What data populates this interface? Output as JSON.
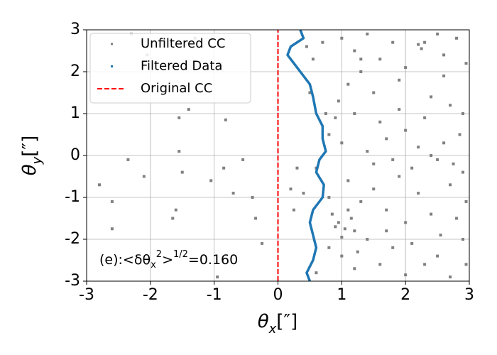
{
  "chart_data": {
    "type": "scatter",
    "x_label": {
      "base": "θ",
      "sub": "x",
      "suffix": "[″]"
    },
    "y_label": {
      "base": "θ",
      "sub": "y",
      "suffix": "[″]"
    },
    "annotation": {
      "prefix": "(e):<δθ",
      "sub": "x",
      "sup": "2",
      "mid": ">",
      "sup2": "1/2",
      "suffix": "=0.160"
    },
    "xlim": [
      -3,
      3
    ],
    "ylim": [
      -3,
      3
    ],
    "xticks": [
      -3,
      -2,
      -1,
      0,
      1,
      2,
      3
    ],
    "yticks": [
      -3,
      -2,
      -1,
      0,
      1,
      2,
      3
    ],
    "grid": true,
    "legend": "upper left",
    "series": [
      {
        "name": "Unfiltered CC",
        "color": "#808080",
        "marker": "point",
        "x": [
          -2.8,
          -2.6,
          -2.35,
          -2.1,
          -2.05,
          -2.3,
          -1.4,
          -1.55,
          -1.5,
          -1.6,
          -1.65,
          -1.05,
          -0.82,
          -0.9,
          -0.85,
          -0.7,
          -0.55,
          -0.4,
          -0.35,
          -0.25,
          -0.95,
          -2.6,
          -1.55,
          -1.3,
          0.45,
          0.55,
          0.5,
          0.75,
          0.8,
          0.6,
          0.8,
          0.85,
          0.95,
          1.05,
          1.15,
          1.2,
          1.0,
          0.9,
          1.1,
          1.0,
          1.2,
          1.4,
          1.3,
          1.6,
          1.8,
          2.0,
          2.2,
          2.25,
          2.3,
          2.5,
          2.6,
          2.8,
          2.95,
          1.1,
          1.5,
          1.9,
          2.4,
          2.7,
          2.9,
          1.2,
          1.6,
          2.0,
          2.3,
          2.6,
          2.85,
          1.0,
          1.4,
          1.8,
          2.1,
          2.5,
          2.9,
          1.1,
          1.5,
          1.9,
          2.2,
          2.7,
          2.95,
          1.3,
          1.7,
          2.0,
          2.4,
          2.8,
          1.4,
          1.8,
          2.1,
          2.5,
          2.9,
          1.0,
          1.2,
          1.6,
          2.0,
          2.3,
          2.7,
          2.95,
          0.6,
          0.8,
          0.3,
          0.4,
          0.25,
          0.2,
          1.7,
          2.4,
          1.3,
          1.9,
          2.6,
          0.9,
          1.5,
          2.2,
          2.75,
          1.25,
          2.55,
          0.7,
          0.95,
          1.7
        ],
        "y": [
          -0.7,
          -1.1,
          -0.1,
          -0.5,
          2.4,
          2.9,
          1.1,
          0.9,
          -0.4,
          -1.3,
          -1.5,
          -0.6,
          0.85,
          2.2,
          -0.3,
          -0.9,
          -0.1,
          -1.0,
          -1.5,
          -2.1,
          -2.9,
          -1.75,
          0.1,
          2.8,
          2.6,
          2.3,
          1.5,
          1.0,
          0.5,
          -0.3,
          -1.0,
          -1.4,
          -1.6,
          -1.75,
          -1.5,
          -1.8,
          -1.95,
          -1.7,
          -1.3,
          2.8,
          2.5,
          2.9,
          2.0,
          2.3,
          2.7,
          2.1,
          2.65,
          2.55,
          2.7,
          2.9,
          2.4,
          2.8,
          2.2,
          1.7,
          1.5,
          1.8,
          1.4,
          1.2,
          1.0,
          1.0,
          0.8,
          0.6,
          0.9,
          0.3,
          0.5,
          0.3,
          0.1,
          -0.1,
          -0.3,
          -0.1,
          -0.4,
          -0.6,
          -0.8,
          -0.5,
          -0.9,
          -0.7,
          -1.1,
          -1.1,
          -1.3,
          -1.6,
          -1.4,
          -1.5,
          -2.0,
          -2.2,
          -2.1,
          -2.4,
          -2.0,
          -2.4,
          -2.7,
          -2.6,
          -2.85,
          -2.6,
          -2.9,
          -2.6,
          -2.8,
          -2.2,
          -0.3,
          -0.9,
          -1.3,
          -0.8,
          0.4,
          0.0,
          2.3,
          1.1,
          1.9,
          0.9,
          -0.2,
          0.2,
          -0.2,
          -2.3,
          -1.9,
          2.7,
          1.3,
          -1.8
        ]
      },
      {
        "name": "Filtered Data",
        "color": "#1f77b4",
        "marker": "trace",
        "x": [
          0.35,
          0.4,
          0.2,
          0.15,
          0.25,
          0.35,
          0.5,
          0.55,
          0.6,
          0.7,
          0.7,
          0.75,
          0.65,
          0.6,
          0.72,
          0.7,
          0.55,
          0.5,
          0.55,
          0.6,
          0.55,
          0.45,
          0.5
        ],
        "y": [
          3,
          2.8,
          2.6,
          2.4,
          2.2,
          2.0,
          1.7,
          1.4,
          1.0,
          0.7,
          0.4,
          0.1,
          -0.1,
          -0.4,
          -0.7,
          -1.0,
          -1.3,
          -1.6,
          -1.9,
          -2.2,
          -2.5,
          -2.8,
          -3
        ]
      },
      {
        "name": "Original CC",
        "color": "#ff0000",
        "marker": "dashed",
        "x": [
          0,
          0
        ],
        "y": [
          -3,
          3
        ]
      }
    ]
  }
}
